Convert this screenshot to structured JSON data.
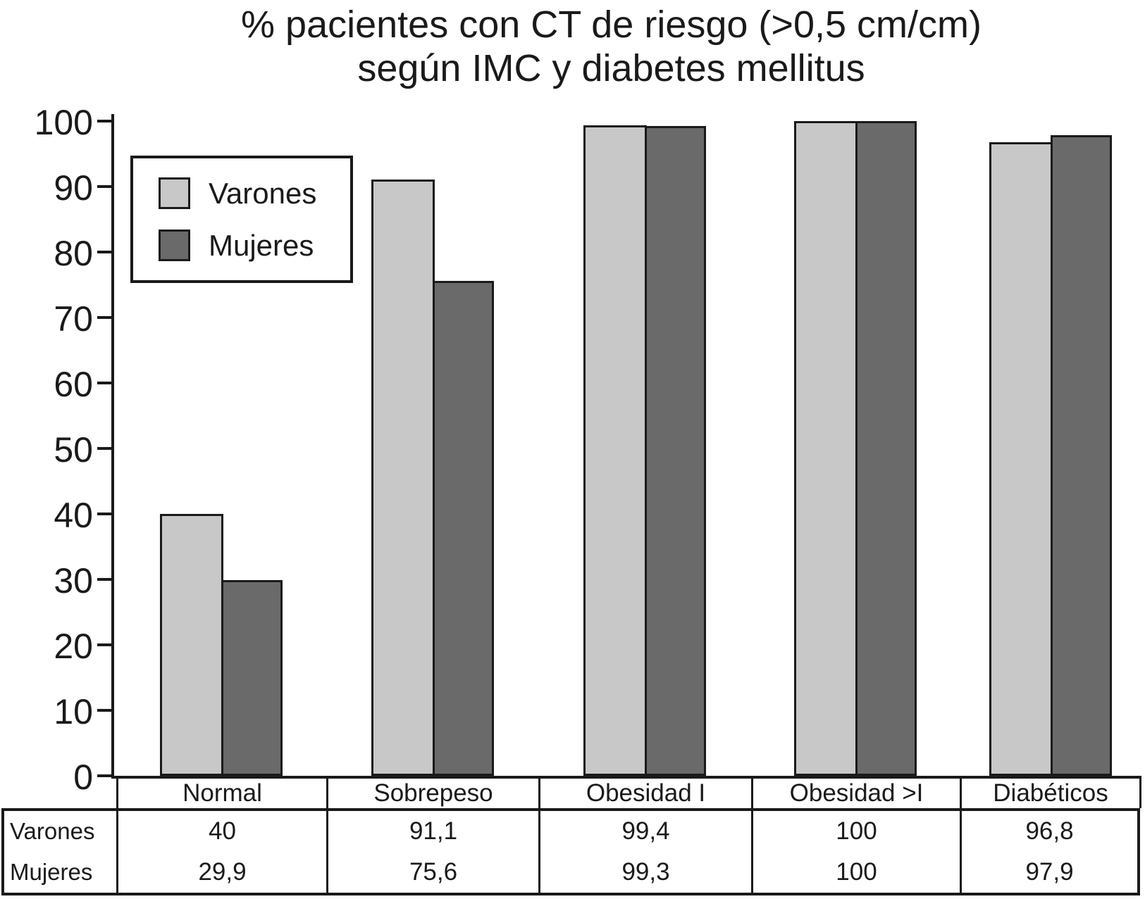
{
  "title": {
    "line1": "% pacientes con CT de riesgo (>0,5 cm/cm)",
    "line2": "según IMC y diabetes mellitus"
  },
  "legend": {
    "items": [
      {
        "label": "Varones",
        "color": "#c8c8c8"
      },
      {
        "label": "Mujeres",
        "color": "#6a6a6a"
      }
    ]
  },
  "chart_data": {
    "type": "bar",
    "title": "% pacientes con CT de riesgo (>0,5 cm/cm) según IMC y diabetes mellitus",
    "categories": [
      "Normal",
      "Sobrepeso",
      "Obesidad I",
      "Obesidad >I",
      "Diabéticos"
    ],
    "series": [
      {
        "name": "Varones",
        "color": "#c8c8c8",
        "values": [
          40,
          91.1,
          99.4,
          100,
          96.8
        ]
      },
      {
        "name": "Mujeres",
        "color": "#6a6a6a",
        "values": [
          29.9,
          75.6,
          99.3,
          100,
          97.9
        ]
      }
    ],
    "xlabel": "",
    "ylabel": "",
    "ylim": [
      0,
      100
    ],
    "yticks": [
      0,
      10,
      20,
      30,
      40,
      50,
      60,
      70,
      80,
      90,
      100
    ],
    "grid": false,
    "legend_position": "upper-left",
    "bar_border_color": "#1a1a1a"
  },
  "table": {
    "row_headers": [
      "Varones",
      "Mujeres"
    ],
    "columns": [
      "Normal",
      "Sobrepeso",
      "Obesidad I",
      "Obesidad >I",
      "Diabéticos"
    ],
    "values_display": [
      [
        "40",
        "91,1",
        "99,4",
        "100",
        "96,8"
      ],
      [
        "29,9",
        "75,6",
        "99,3",
        "100",
        "97,9"
      ]
    ]
  }
}
